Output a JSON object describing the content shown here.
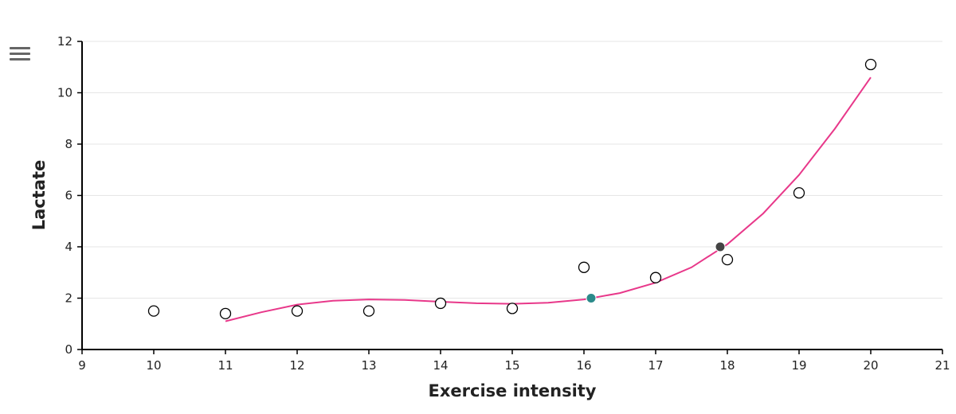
{
  "menu": {
    "icon": "hamburger-menu-icon"
  },
  "chart_data": {
    "type": "scatter",
    "xlabel": "Exercise intensity",
    "ylabel": "Lactate",
    "xlim": [
      9,
      21
    ],
    "ylim": [
      0,
      12
    ],
    "xticks": [
      9,
      10,
      11,
      12,
      13,
      14,
      15,
      16,
      17,
      18,
      19,
      20,
      21
    ],
    "yticks": [
      0,
      2,
      4,
      6,
      8,
      10,
      12
    ],
    "grid": "horizontal",
    "measurements": {
      "x": [
        10,
        11,
        12,
        13,
        14,
        15,
        16,
        17,
        18,
        19,
        20
      ],
      "y": [
        1.5,
        1.4,
        1.5,
        1.5,
        1.8,
        1.6,
        3.2,
        2.8,
        3.5,
        6.1,
        11.1
      ],
      "style": "hollow-circle"
    },
    "fit_curve": {
      "color": "#e8388a",
      "points": [
        [
          11,
          1.1
        ],
        [
          11.5,
          1.45
        ],
        [
          12,
          1.75
        ],
        [
          12.5,
          1.9
        ],
        [
          13,
          1.95
        ],
        [
          13.5,
          1.93
        ],
        [
          14,
          1.86
        ],
        [
          14.5,
          1.8
        ],
        [
          15,
          1.78
        ],
        [
          15.5,
          1.82
        ],
        [
          16,
          1.95
        ],
        [
          16.5,
          2.2
        ],
        [
          17,
          2.6
        ],
        [
          17.5,
          3.2
        ],
        [
          18,
          4.1
        ],
        [
          18.5,
          5.3
        ],
        [
          19,
          6.8
        ],
        [
          19.5,
          8.6
        ],
        [
          20,
          10.6
        ]
      ]
    },
    "highlight_points": [
      {
        "x": 16.1,
        "y": 2.0,
        "color": "#2a8a8a"
      },
      {
        "x": 17.9,
        "y": 4.0,
        "color": "#444444"
      }
    ]
  }
}
